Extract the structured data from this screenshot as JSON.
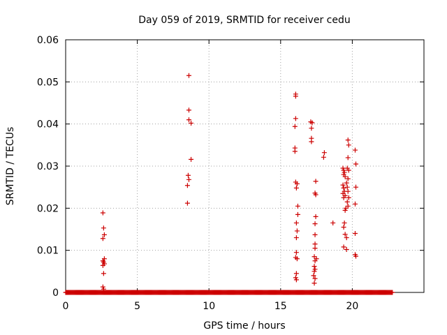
{
  "chart_data": {
    "type": "scatter",
    "title": "Day 059 of 2019, SRMTID for receiver cedu",
    "xlabel": "GPS time / hours",
    "ylabel": "SRMTID / TECUs",
    "xlim": [
      0,
      25
    ],
    "ylim": [
      0,
      0.06
    ],
    "xticks": [
      0,
      5,
      10,
      15,
      20
    ],
    "xtick_labels": [
      "0",
      "5",
      "10",
      "15",
      "20"
    ],
    "yticks": [
      0,
      0.01,
      0.02,
      0.03,
      0.04,
      0.05,
      0.06
    ],
    "ytick_labels": [
      "0",
      "0.01",
      "0.02",
      "0.03",
      "0.04",
      "0.05",
      "0.06"
    ],
    "grid": true,
    "marker": "+",
    "color": "#cc0000",
    "baseline": {
      "y": 0,
      "x_start": 0,
      "x_end": 22.8,
      "step": 0.05
    },
    "points": [
      [
        2.6,
        0.0189
      ],
      [
        2.65,
        0.0153
      ],
      [
        2.7,
        0.0137
      ],
      [
        2.6,
        0.0128
      ],
      [
        2.7,
        0.008
      ],
      [
        2.6,
        0.0075
      ],
      [
        2.65,
        0.0072
      ],
      [
        2.7,
        0.0068
      ],
      [
        2.6,
        0.0064
      ],
      [
        2.65,
        0.0045
      ],
      [
        2.6,
        0.0013
      ],
      [
        2.65,
        0.0008
      ],
      [
        8.6,
        0.0515
      ],
      [
        8.6,
        0.0433
      ],
      [
        8.6,
        0.041
      ],
      [
        8.75,
        0.0402
      ],
      [
        8.75,
        0.0316
      ],
      [
        8.55,
        0.0278
      ],
      [
        8.6,
        0.0268
      ],
      [
        8.5,
        0.0254
      ],
      [
        8.5,
        0.0212
      ],
      [
        16.05,
        0.0471
      ],
      [
        16.05,
        0.0466
      ],
      [
        16.05,
        0.0413
      ],
      [
        16.0,
        0.0394
      ],
      [
        16.0,
        0.0343
      ],
      [
        16.0,
        0.0335
      ],
      [
        16.05,
        0.0262
      ],
      [
        16.15,
        0.0258
      ],
      [
        16.1,
        0.0248
      ],
      [
        16.2,
        0.0205
      ],
      [
        16.2,
        0.0185
      ],
      [
        16.1,
        0.0165
      ],
      [
        16.15,
        0.0146
      ],
      [
        16.1,
        0.013
      ],
      [
        16.1,
        0.0095
      ],
      [
        16.05,
        0.0083
      ],
      [
        16.15,
        0.008
      ],
      [
        16.1,
        0.0045
      ],
      [
        16.05,
        0.0035
      ],
      [
        16.1,
        0.003
      ],
      [
        17.1,
        0.0405
      ],
      [
        17.2,
        0.0403
      ],
      [
        17.15,
        0.039
      ],
      [
        17.15,
        0.0366
      ],
      [
        17.15,
        0.0358
      ],
      [
        17.45,
        0.0264
      ],
      [
        17.4,
        0.0236
      ],
      [
        17.45,
        0.0232
      ],
      [
        17.45,
        0.018
      ],
      [
        17.4,
        0.0163
      ],
      [
        17.4,
        0.0137
      ],
      [
        17.4,
        0.0115
      ],
      [
        17.4,
        0.0105
      ],
      [
        17.35,
        0.0085
      ],
      [
        17.5,
        0.008
      ],
      [
        17.4,
        0.0075
      ],
      [
        17.35,
        0.0062
      ],
      [
        17.4,
        0.0055
      ],
      [
        17.35,
        0.005
      ],
      [
        17.3,
        0.004
      ],
      [
        17.4,
        0.0033
      ],
      [
        17.35,
        0.0022
      ],
      [
        18.05,
        0.0332
      ],
      [
        18.0,
        0.0321
      ],
      [
        18.65,
        0.0165
      ],
      [
        19.35,
        0.0295
      ],
      [
        19.4,
        0.029
      ],
      [
        19.45,
        0.0285
      ],
      [
        19.4,
        0.028
      ],
      [
        19.5,
        0.0275
      ],
      [
        19.35,
        0.0255
      ],
      [
        19.4,
        0.0248
      ],
      [
        19.45,
        0.024
      ],
      [
        19.35,
        0.0235
      ],
      [
        19.5,
        0.023
      ],
      [
        19.4,
        0.0225
      ],
      [
        19.55,
        0.02
      ],
      [
        19.5,
        0.0195
      ],
      [
        19.45,
        0.0165
      ],
      [
        19.4,
        0.0155
      ],
      [
        19.5,
        0.0138
      ],
      [
        19.6,
        0.013
      ],
      [
        19.4,
        0.0108
      ],
      [
        19.6,
        0.0102
      ],
      [
        19.7,
        0.0362
      ],
      [
        19.75,
        0.035
      ],
      [
        19.7,
        0.032
      ],
      [
        19.65,
        0.0295
      ],
      [
        19.75,
        0.029
      ],
      [
        19.7,
        0.027
      ],
      [
        19.6,
        0.026
      ],
      [
        19.65,
        0.025
      ],
      [
        19.7,
        0.024
      ],
      [
        19.75,
        0.0225
      ],
      [
        19.65,
        0.0215
      ],
      [
        19.7,
        0.0205
      ],
      [
        20.2,
        0.0338
      ],
      [
        20.25,
        0.0305
      ],
      [
        20.25,
        0.025
      ],
      [
        20.2,
        0.021
      ],
      [
        20.2,
        0.014
      ],
      [
        20.2,
        0.009
      ],
      [
        20.25,
        0.0086
      ]
    ]
  }
}
